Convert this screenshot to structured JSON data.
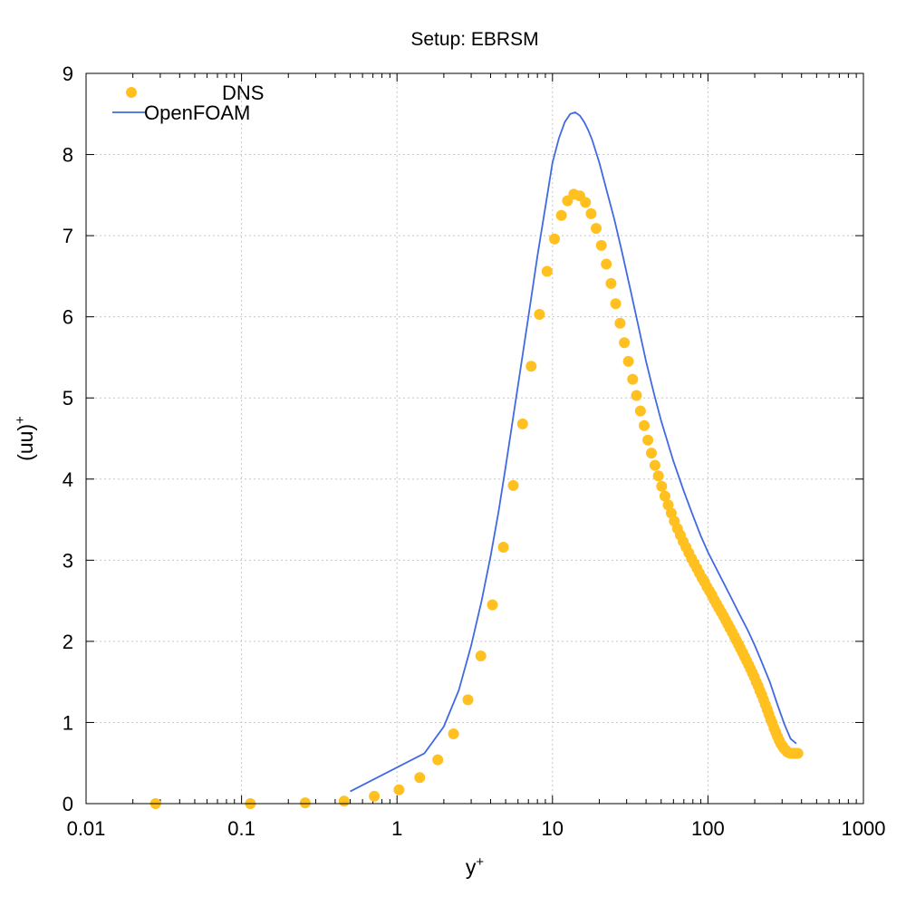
{
  "chart_data": {
    "type": "scatter",
    "title": "Setup: EBRSM",
    "xlabel": "y",
    "xlabel_sup": "+",
    "ylabel": "(uu)",
    "ylabel_sup": "+",
    "xscale": "log",
    "xlim": [
      0.01,
      1000
    ],
    "ylim": [
      0,
      9
    ],
    "grid": true,
    "legend_position": "top-left",
    "x_ticks": [
      {
        "value": 0.01,
        "label": "0.01"
      },
      {
        "value": 0.1,
        "label": "0.1"
      },
      {
        "value": 1,
        "label": "1"
      },
      {
        "value": 10,
        "label": "10"
      },
      {
        "value": 100,
        "label": "100"
      },
      {
        "value": 1000,
        "label": "1000"
      }
    ],
    "y_ticks": [
      {
        "value": 0,
        "label": "0"
      },
      {
        "value": 1,
        "label": "1"
      },
      {
        "value": 2,
        "label": "2"
      },
      {
        "value": 3,
        "label": "3"
      },
      {
        "value": 4,
        "label": "4"
      },
      {
        "value": 5,
        "label": "5"
      },
      {
        "value": 6,
        "label": "6"
      },
      {
        "value": 7,
        "label": "7"
      },
      {
        "value": 8,
        "label": "8"
      },
      {
        "value": 9,
        "label": "9"
      }
    ],
    "series": [
      {
        "name": "DNS",
        "kind": "points",
        "color": "#ffc020",
        "x": [
          0.028,
          0.114,
          0.257,
          0.457,
          0.714,
          1.03,
          1.4,
          1.83,
          2.31,
          2.86,
          3.46,
          4.11,
          4.83,
          5.59,
          6.42,
          7.3,
          8.24,
          9.23,
          10.3,
          11.4,
          12.5,
          13.7,
          15.0,
          16.3,
          17.7,
          19.1,
          20.6,
          22.2,
          23.8,
          25.5,
          27.2,
          29.0,
          30.8,
          32.8,
          34.7,
          36.8,
          38.9,
          41.1,
          43.3,
          45.6,
          48.0,
          50.4,
          52.9,
          55.5,
          58.1,
          60.8,
          63.6,
          66.4,
          69.3,
          72.3,
          75.3,
          78.4,
          81.6,
          84.9,
          88.2,
          91.6,
          95.1,
          98.7,
          102.3,
          106.0,
          109.8,
          113.7,
          117.7,
          121.7,
          125.9,
          130.1,
          134.4,
          138.8,
          143.3,
          147.9,
          152.6,
          157.3,
          162.2,
          167.1,
          172.2,
          177.3,
          182.6,
          187.9,
          193.3,
          198.9,
          204.5,
          210.2,
          216.1,
          222.0,
          228.0,
          234.2,
          240.4,
          246.8,
          253.2,
          259.7,
          266.4,
          273.1,
          280.0,
          287.0,
          294.0,
          301.2,
          308.4,
          315.8,
          323.3,
          330.9,
          338.6,
          346.4,
          354.4,
          362.4,
          370.6,
          378.8
        ],
        "y": [
          0.0,
          0.0,
          0.01,
          0.03,
          0.09,
          0.17,
          0.32,
          0.54,
          0.86,
          1.28,
          1.82,
          2.45,
          3.16,
          3.92,
          4.68,
          5.39,
          6.03,
          6.56,
          6.96,
          7.25,
          7.43,
          7.51,
          7.49,
          7.41,
          7.27,
          7.09,
          6.88,
          6.65,
          6.41,
          6.16,
          5.92,
          5.68,
          5.45,
          5.23,
          5.03,
          4.84,
          4.66,
          4.48,
          4.32,
          4.17,
          4.04,
          3.91,
          3.79,
          3.68,
          3.58,
          3.48,
          3.39,
          3.31,
          3.23,
          3.16,
          3.09,
          3.02,
          2.96,
          2.9,
          2.84,
          2.78,
          2.73,
          2.67,
          2.62,
          2.57,
          2.51,
          2.46,
          2.41,
          2.36,
          2.31,
          2.26,
          2.21,
          2.16,
          2.11,
          2.06,
          2.01,
          1.96,
          1.91,
          1.86,
          1.81,
          1.76,
          1.71,
          1.66,
          1.61,
          1.56,
          1.5,
          1.45,
          1.39,
          1.34,
          1.28,
          1.22,
          1.16,
          1.1,
          1.04,
          0.99,
          0.93,
          0.88,
          0.83,
          0.78,
          0.74,
          0.71,
          0.68,
          0.66,
          0.64,
          0.63,
          0.62,
          0.62,
          0.62,
          0.62,
          0.62,
          0.62
        ]
      },
      {
        "name": "OpenFOAM",
        "kind": "line",
        "color": "#4169e1",
        "x": [
          0.5,
          1.5,
          2.0,
          2.5,
          3.0,
          3.5,
          4.0,
          4.5,
          5.0,
          6.0,
          7.0,
          8.0,
          9.0,
          10.0,
          11.0,
          12.0,
          13.0,
          14.0,
          15.0,
          16.0,
          17.0,
          18.0,
          20.0,
          22.0,
          25.0,
          28.0,
          32.0,
          36.0,
          40.0,
          45.0,
          50.0,
          60.0,
          70.0,
          80.0,
          90.0,
          100.0,
          120.0,
          140.0,
          160.0,
          180.0,
          200.0,
          220.0,
          250.0,
          280.0,
          310.0,
          340.0,
          370.0
        ],
        "y": [
          0.15,
          0.62,
          0.95,
          1.4,
          1.95,
          2.5,
          3.05,
          3.6,
          4.15,
          5.15,
          6.0,
          6.75,
          7.35,
          7.9,
          8.2,
          8.4,
          8.5,
          8.52,
          8.48,
          8.4,
          8.3,
          8.18,
          7.9,
          7.6,
          7.2,
          6.8,
          6.3,
          5.85,
          5.45,
          5.05,
          4.72,
          4.22,
          3.85,
          3.55,
          3.3,
          3.1,
          2.8,
          2.55,
          2.33,
          2.14,
          1.95,
          1.76,
          1.5,
          1.22,
          0.98,
          0.8,
          0.74
        ]
      }
    ]
  }
}
